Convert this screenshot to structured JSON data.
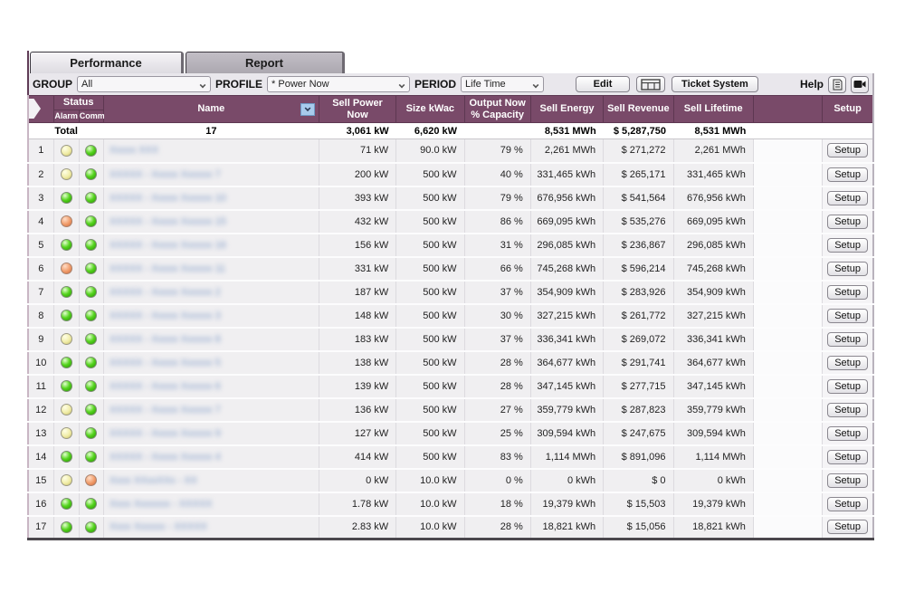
{
  "tabs": {
    "performance": "Performance",
    "report": "Report"
  },
  "toolbar": {
    "group_label": "GROUP",
    "group_value": "All",
    "profile_label": "PROFILE",
    "profile_value": "* Power Now",
    "period_label": "PERIOD",
    "period_value": "Life Time",
    "edit_label": "Edit",
    "ticket_label": "Ticket System",
    "help_label": "Help",
    "icons": [
      "table-grid-icon",
      "document-icon",
      "video-icon"
    ]
  },
  "table": {
    "headers": {
      "status": "Status",
      "alarm": "Alarm",
      "comm": "Comm.",
      "name": "Name",
      "sell_power": "Sell Power Now",
      "size": "Size kWac",
      "output": "Output Now % Capacity",
      "sell_energy": "Sell Energy",
      "sell_revenue": "Sell Revenue",
      "sell_lifetime": "Sell Lifetime",
      "setup": "Setup"
    },
    "total": {
      "label": "Total",
      "count": "17",
      "sell_power": "3,061 kW",
      "size": "6,620 kW",
      "capacity": "",
      "sell_energy": "8,531 MWh",
      "sell_revenue": "$ 5,287,750",
      "sell_lifetime": "8,531 MWh"
    },
    "names_blurred": true,
    "rows": [
      {
        "n": "1",
        "alarm": "yellow",
        "comm": "green",
        "name": "Xxxxx XXX",
        "power": "71 kW",
        "size": "90.0 kW",
        "cap": "79 %",
        "energy": "2,261 MWh",
        "revenue": "$ 271,272",
        "lifetime": "2,261 MWh",
        "setup": "Setup"
      },
      {
        "n": "2",
        "alarm": "yellow",
        "comm": "green",
        "name": "XXXXX - Xxxxx Xxxxxx 7",
        "power": "200 kW",
        "size": "500 kW",
        "cap": "40 %",
        "energy": "331,465 kWh",
        "revenue": "$ 265,171",
        "lifetime": "331,465 kWh",
        "setup": "Setup"
      },
      {
        "n": "3",
        "alarm": "green",
        "comm": "green",
        "name": "XXXXX - Xxxxx Xxxxxx 10",
        "power": "393 kW",
        "size": "500 kW",
        "cap": "79 %",
        "energy": "676,956 kWh",
        "revenue": "$ 541,564",
        "lifetime": "676,956 kWh",
        "setup": "Setup"
      },
      {
        "n": "4",
        "alarm": "orange",
        "comm": "green",
        "name": "XXXXX - Xxxxx Xxxxxx 15",
        "power": "432 kW",
        "size": "500 kW",
        "cap": "86 %",
        "energy": "669,095 kWh",
        "revenue": "$ 535,276",
        "lifetime": "669,095 kWh",
        "setup": "Setup"
      },
      {
        "n": "5",
        "alarm": "green",
        "comm": "green",
        "name": "XXXXX - Xxxxx Xxxxxx 16",
        "power": "156 kW",
        "size": "500 kW",
        "cap": "31 %",
        "energy": "296,085 kWh",
        "revenue": "$ 236,867",
        "lifetime": "296,085 kWh",
        "setup": "Setup"
      },
      {
        "n": "6",
        "alarm": "orange",
        "comm": "green",
        "name": "XXXXX - Xxxxx Xxxxxx 11",
        "power": "331 kW",
        "size": "500 kW",
        "cap": "66 %",
        "energy": "745,268 kWh",
        "revenue": "$ 596,214",
        "lifetime": "745,268 kWh",
        "setup": "Setup"
      },
      {
        "n": "7",
        "alarm": "green",
        "comm": "green",
        "name": "XXXXX - Xxxxx Xxxxxx 2",
        "power": "187 kW",
        "size": "500 kW",
        "cap": "37 %",
        "energy": "354,909 kWh",
        "revenue": "$ 283,926",
        "lifetime": "354,909 kWh",
        "setup": "Setup"
      },
      {
        "n": "8",
        "alarm": "green",
        "comm": "green",
        "name": "XXXXX - Xxxxx Xxxxxx 3",
        "power": "148 kW",
        "size": "500 kW",
        "cap": "30 %",
        "energy": "327,215 kWh",
        "revenue": "$ 261,772",
        "lifetime": "327,215 kWh",
        "setup": "Setup"
      },
      {
        "n": "9",
        "alarm": "yellow",
        "comm": "green",
        "name": "XXXXX - Xxxxx Xxxxxx 8",
        "power": "183 kW",
        "size": "500 kW",
        "cap": "37 %",
        "energy": "336,341 kWh",
        "revenue": "$ 269,072",
        "lifetime": "336,341 kWh",
        "setup": "Setup"
      },
      {
        "n": "10",
        "alarm": "green",
        "comm": "green",
        "name": "XXXXX - Xxxxx Xxxxxx 5",
        "power": "138 kW",
        "size": "500 kW",
        "cap": "28 %",
        "energy": "364,677 kWh",
        "revenue": "$ 291,741",
        "lifetime": "364,677 kWh",
        "setup": "Setup"
      },
      {
        "n": "11",
        "alarm": "green",
        "comm": "green",
        "name": "XXXXX - Xxxxx Xxxxxx 6",
        "power": "139 kW",
        "size": "500 kW",
        "cap": "28 %",
        "energy": "347,145 kWh",
        "revenue": "$ 277,715",
        "lifetime": "347,145 kWh",
        "setup": "Setup"
      },
      {
        "n": "12",
        "alarm": "yellow",
        "comm": "green",
        "name": "XXXXX - Xxxxx Xxxxxx 7",
        "power": "136 kW",
        "size": "500 kW",
        "cap": "27 %",
        "energy": "359,779 kWh",
        "revenue": "$ 287,823",
        "lifetime": "359,779 kWh",
        "setup": "Setup"
      },
      {
        "n": "13",
        "alarm": "yellow",
        "comm": "green",
        "name": "XXXXX - Xxxxx Xxxxxx 9",
        "power": "127 kW",
        "size": "500 kW",
        "cap": "25 %",
        "energy": "309,594 kWh",
        "revenue": "$ 247,675",
        "lifetime": "309,594 kWh",
        "setup": "Setup"
      },
      {
        "n": "14",
        "alarm": "green",
        "comm": "green",
        "name": "XXXXX - Xxxxx Xxxxxx 4",
        "power": "414 kW",
        "size": "500 kW",
        "cap": "83 %",
        "energy": "1,114 MWh",
        "revenue": "$ 891,096",
        "lifetime": "1,114 MWh",
        "setup": "Setup"
      },
      {
        "n": "15",
        "alarm": "yellow",
        "comm": "orange",
        "name": "Xxxx XXxxXXx - XX",
        "power": "0 kW",
        "size": "10.0 kW",
        "cap": "0 %",
        "energy": "0 kWh",
        "revenue": "$ 0",
        "lifetime": "0 kWh",
        "setup": "Setup"
      },
      {
        "n": "16",
        "alarm": "green",
        "comm": "green",
        "name": "Xxxx Xxxxxxx - XXXXX",
        "power": "1.78 kW",
        "size": "10.0 kW",
        "cap": "18 %",
        "energy": "19,379 kWh",
        "revenue": "$ 15,503",
        "lifetime": "19,379 kWh",
        "setup": "Setup"
      },
      {
        "n": "17",
        "alarm": "green",
        "comm": "green",
        "name": "Xxxx Xxxxxx - XXXXX",
        "power": "2.83 kW",
        "size": "10.0 kW",
        "cap": "28 %",
        "energy": "18,821 kWh",
        "revenue": "$ 15,056",
        "lifetime": "18,821 kWh",
        "setup": "Setup"
      }
    ]
  },
  "colors": {
    "header_cell": "#794a69",
    "header_frame": "#5d3751",
    "status_green": "#55d41e",
    "status_yellow": "#f0eca6",
    "status_orange": "#f09a68",
    "row_bg": "#f0eff1"
  }
}
